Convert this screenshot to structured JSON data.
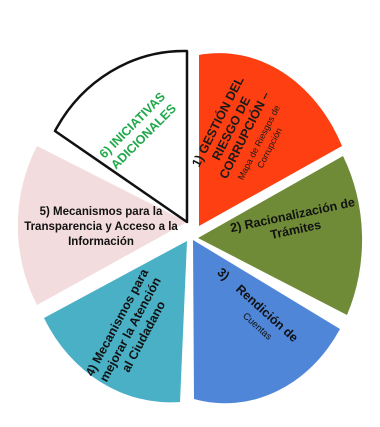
{
  "segments": [
    {
      "id": "gestion-riesgo",
      "lines": [
        "1) GESTIÓN DEL",
        "RIESGO DE",
        "CORRUPCIÓN –"
      ],
      "sub_lines": [
        "Mapa de Riesgos de",
        "Corrupción"
      ],
      "fill": "#fe3f12",
      "text_color": "#1a1a1a"
    },
    {
      "id": "racionalizacion",
      "lines": [
        "2) Racionalización de",
        "Trámites"
      ],
      "sub_lines": [],
      "fill": "#6f8b37",
      "text_color": "#111111"
    },
    {
      "id": "rendicion",
      "lines": [
        "3)    Rendición de"
      ],
      "sub_lines": [
        "Cuentas"
      ],
      "fill": "#4f86d8",
      "text_color": "#111111"
    },
    {
      "id": "atencion-ciudadano",
      "lines": [
        "4) Mecanismos para",
        "mejorar la Atención",
        "al Ciudadano"
      ],
      "sub_lines": [],
      "fill": "#4ab0c6",
      "text_color": "#111111"
    },
    {
      "id": "transparencia",
      "lines": [
        "5) Mecanismos para la",
        "Transparencia y Acceso a la",
        "Información"
      ],
      "sub_lines": [],
      "fill": "#f3dcdd",
      "text_color": "#111111"
    },
    {
      "id": "iniciativas",
      "lines": [
        "6) INICIATIVAS",
        "ADICIONALES"
      ],
      "sub_lines": [],
      "fill": "#ffffff",
      "text_color": "#1fa84a"
    }
  ]
}
